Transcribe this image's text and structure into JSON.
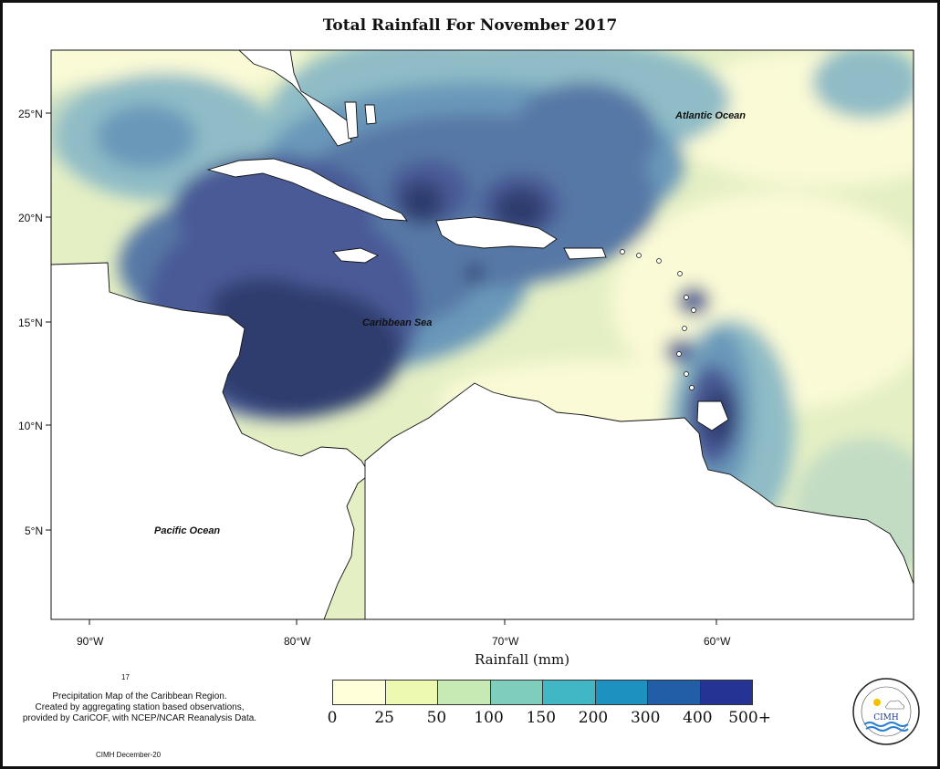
{
  "title": "Total Rainfall For November 2017",
  "y_axis_labels": [
    "25°N",
    "20°N",
    "15°N",
    "10°N",
    "5°N"
  ],
  "x_axis_labels": [
    "90°W",
    "80°W",
    "70°W",
    "60°W"
  ],
  "map_labels": {
    "atlantic": "Atlantic Ocean",
    "caribbean": "Caribbean Sea",
    "pacific": "Pacific Ocean"
  },
  "legend": {
    "title": "Rainfall (mm)",
    "ticks": [
      "0",
      "25",
      "50",
      "100",
      "150",
      "200",
      "300",
      "400",
      "500+"
    ],
    "colors": [
      "#ffffd9",
      "#edf8b1",
      "#c7e9b4",
      "#7fcdbb",
      "#41b6c4",
      "#1d91c0",
      "#225ea8",
      "#253494",
      "#081d58"
    ]
  },
  "footer": {
    "number": "17",
    "description_lines": [
      "Precipitation Map of the Caribbean Region.",
      "Created by aggregating station based observations,",
      "provided by CariCOF, with NCEP/NCAR Reanalysis Data."
    ],
    "credit": "CIMH December-20",
    "logo_text": "CIMH"
  },
  "map_colors": {
    "c0": "#fafad6",
    "c1": "#e4efc4",
    "c2": "#c2dcc4",
    "c3": "#8fbcc6",
    "c4": "#6a98b9",
    "c5": "#5778a6",
    "c6": "#4a5a96",
    "c7": "#2e3d6e",
    "land": "#ffffff"
  }
}
